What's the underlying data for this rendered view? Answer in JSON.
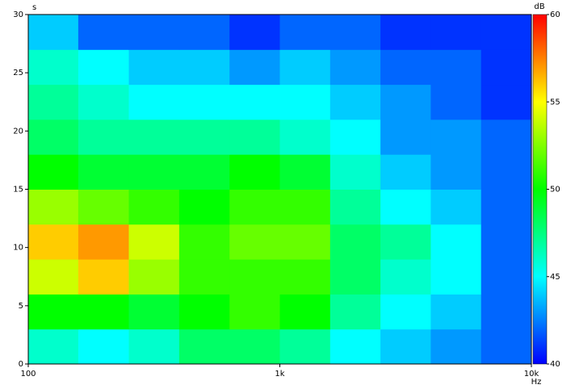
{
  "chart_data": {
    "type": "spectrogram",
    "x_unit": "Hz",
    "y_unit": "s",
    "color_unit": "dB",
    "log_x": true,
    "xlim": [
      100,
      10000
    ],
    "xticks": [
      100,
      {
        "value": 1000,
        "label": "1k"
      },
      {
        "value": 10000,
        "label": "10k"
      }
    ],
    "ylim": [
      0,
      30
    ],
    "yticks": [
      0,
      5,
      10,
      15,
      20,
      25,
      30
    ],
    "clim": [
      40,
      60
    ],
    "cticks": [
      40,
      45,
      50,
      55,
      60
    ],
    "colormap": [
      "#0000ff",
      "#00ffff",
      "#00ff00",
      "#ffff00",
      "#ff0000"
    ],
    "x_edges": [
      100,
      158,
      251,
      398,
      631,
      1000,
      1585,
      2512,
      3981,
      6310,
      10000
    ],
    "y_edges": [
      0,
      3,
      6,
      9,
      12,
      15,
      18,
      21,
      24,
      27,
      30
    ],
    "values": [
      [
        46,
        45,
        46,
        48,
        48,
        47,
        45,
        44,
        43,
        42
      ],
      [
        50,
        50,
        49,
        50,
        51,
        50,
        47,
        45,
        44,
        42
      ],
      [
        54,
        56,
        53,
        51,
        51,
        51,
        48,
        46,
        45,
        42
      ],
      [
        56,
        57,
        54,
        51,
        52,
        52,
        48,
        47,
        45,
        42
      ],
      [
        53,
        52,
        51,
        50,
        51,
        51,
        47,
        45,
        44,
        42
      ],
      [
        50,
        49,
        49,
        49,
        50,
        49,
        46,
        44,
        43,
        42
      ],
      [
        48,
        47,
        47,
        47,
        47,
        46,
        45,
        43,
        43,
        42
      ],
      [
        47,
        46,
        45,
        45,
        45,
        45,
        44,
        43,
        42,
        41
      ],
      [
        46,
        45,
        44,
        44,
        43,
        44,
        43,
        42,
        42,
        41
      ],
      [
        44,
        42,
        42,
        42,
        41,
        42,
        42,
        41,
        41,
        41
      ]
    ]
  }
}
